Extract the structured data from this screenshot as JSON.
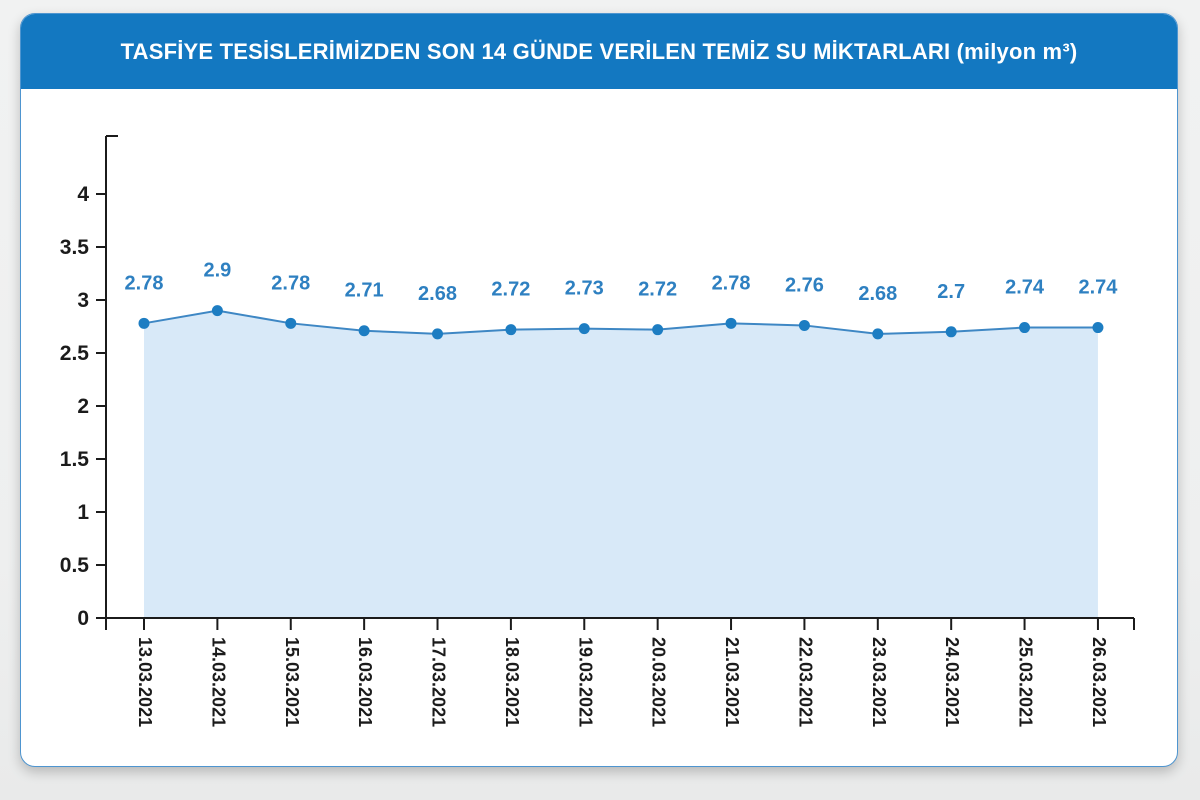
{
  "page": {
    "background_color": "#eff0f0"
  },
  "header": {
    "title": "TASFİYE TESİSLERİMİZDEN SON 14 GÜNDE VERİLEN TEMİZ SU MİKTARLARI (milyon m³)",
    "background_color": "#1378c1",
    "text_color": "#ffffff"
  },
  "chart_data": {
    "type": "area",
    "title": "TASFİYE TESİSLERİMİZDEN SON 14 GÜNDE VERİLEN TEMİZ SU MİKTARLARI (milyon m³)",
    "categories": [
      "13.03.2021",
      "14.03.2021",
      "15.03.2021",
      "16.03.2021",
      "17.03.2021",
      "18.03.2021",
      "19.03.2021",
      "20.03.2021",
      "21.03.2021",
      "22.03.2021",
      "23.03.2021",
      "24.03.2021",
      "25.03.2021",
      "26.03.2021"
    ],
    "values": [
      2.78,
      2.9,
      2.78,
      2.71,
      2.68,
      2.72,
      2.73,
      2.72,
      2.78,
      2.76,
      2.68,
      2.7,
      2.74,
      2.74
    ],
    "yticks": [
      0,
      0.5,
      1,
      1.5,
      2,
      2.5,
      3,
      3.5,
      4
    ],
    "ylim": [
      0,
      4.55
    ],
    "grid": false,
    "legend": "none",
    "data_labels_shown": true,
    "xlabel": "",
    "ylabel": "",
    "colors": {
      "area_fill": "#d8e9f8",
      "line": "#3e87c4",
      "marker": "#1d7dc2",
      "value_label": "#2e80c1",
      "axis": "#1b1b1b",
      "tick_label": "#1b1b1b",
      "card_border": "#4e95d0"
    }
  }
}
